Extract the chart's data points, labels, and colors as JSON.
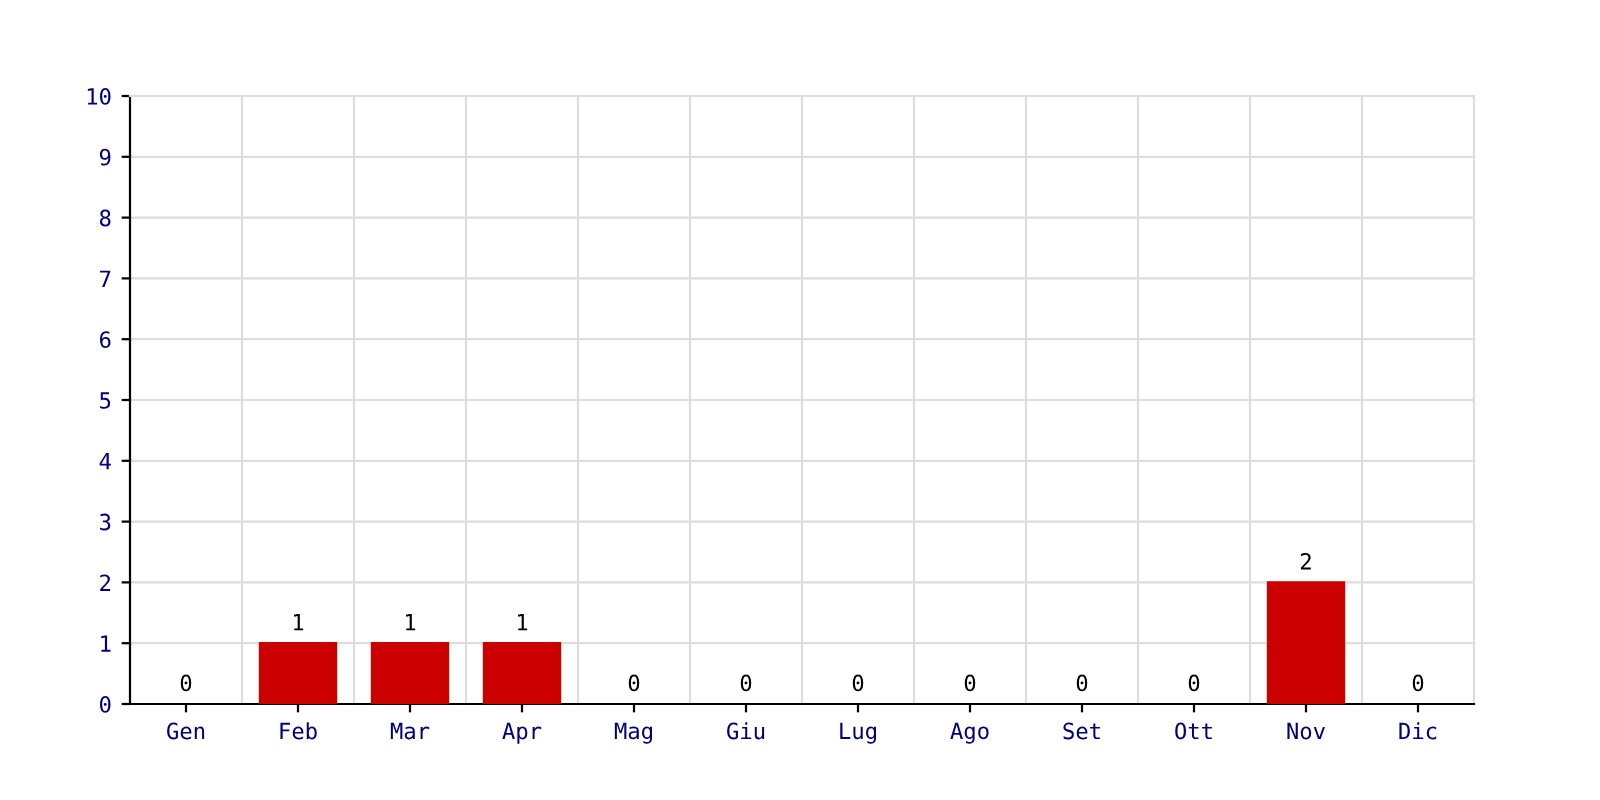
{
  "chart_data": {
    "type": "bar",
    "categories": [
      "Gen",
      "Feb",
      "Mar",
      "Apr",
      "Mag",
      "Giu",
      "Lug",
      "Ago",
      "Set",
      "Ott",
      "Nov",
      "Dic"
    ],
    "values": [
      0,
      1,
      1,
      1,
      0,
      0,
      0,
      0,
      0,
      0,
      2,
      0
    ],
    "color": "#cc0000",
    "ylim": [
      0,
      10
    ],
    "yticks": [
      0,
      1,
      2,
      3,
      4,
      5,
      6,
      7,
      8,
      9,
      10
    ],
    "grid": true,
    "data_labels": true
  }
}
